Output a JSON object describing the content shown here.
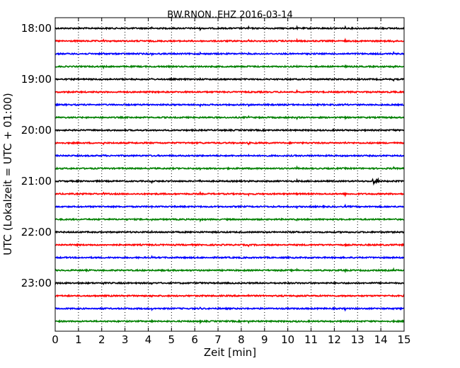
{
  "chart_data": {
    "type": "line",
    "title": "BW.RNON..EHZ 2016-03-14",
    "xlabel": "Zeit  [min]",
    "ylabel": "UTC (Lokalzeit = UTC + 01:00)",
    "xlim": [
      0,
      15
    ],
    "x_ticks": [
      "0",
      "1",
      "2",
      "3",
      "4",
      "5",
      "6",
      "7",
      "8",
      "9",
      "10",
      "11",
      "12",
      "13",
      "14",
      "15"
    ],
    "y_ticks": [
      "18:00",
      "19:00",
      "20:00",
      "21:00",
      "22:00",
      "23:00"
    ],
    "grid": "vertical dotted",
    "trace_colors": [
      "#000000",
      "#ff0000",
      "#0000ff",
      "#008000"
    ],
    "traces": [
      {
        "start": "18:00",
        "color": "#000000"
      },
      {
        "start": "18:15",
        "color": "#ff0000"
      },
      {
        "start": "18:30",
        "color": "#0000ff"
      },
      {
        "start": "18:45",
        "color": "#008000"
      },
      {
        "start": "19:00",
        "color": "#000000"
      },
      {
        "start": "19:15",
        "color": "#ff0000"
      },
      {
        "start": "19:30",
        "color": "#0000ff"
      },
      {
        "start": "19:45",
        "color": "#008000"
      },
      {
        "start": "20:00",
        "color": "#000000"
      },
      {
        "start": "20:15",
        "color": "#ff0000"
      },
      {
        "start": "20:30",
        "color": "#0000ff"
      },
      {
        "start": "20:45",
        "color": "#008000"
      },
      {
        "start": "21:00",
        "color": "#000000"
      },
      {
        "start": "21:15",
        "color": "#ff0000"
      },
      {
        "start": "21:30",
        "color": "#0000ff"
      },
      {
        "start": "21:45",
        "color": "#008000"
      },
      {
        "start": "22:00",
        "color": "#000000"
      },
      {
        "start": "22:15",
        "color": "#ff0000"
      },
      {
        "start": "22:30",
        "color": "#0000ff"
      },
      {
        "start": "22:45",
        "color": "#008000"
      },
      {
        "start": "23:00",
        "color": "#000000"
      },
      {
        "start": "23:15",
        "color": "#ff0000"
      },
      {
        "start": "23:30",
        "color": "#0000ff"
      },
      {
        "start": "23:45",
        "color": "#008000"
      }
    ]
  }
}
